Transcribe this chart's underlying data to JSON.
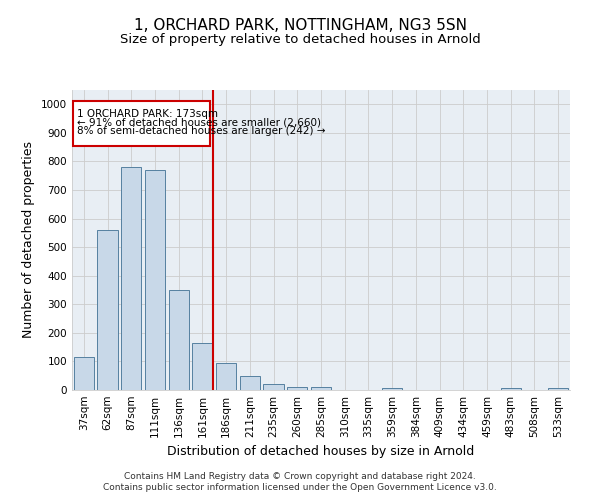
{
  "title": "1, ORCHARD PARK, NOTTINGHAM, NG3 5SN",
  "subtitle": "Size of property relative to detached houses in Arnold",
  "xlabel": "Distribution of detached houses by size in Arnold",
  "ylabel": "Number of detached properties",
  "categories": [
    "37sqm",
    "62sqm",
    "87sqm",
    "111sqm",
    "136sqm",
    "161sqm",
    "186sqm",
    "211sqm",
    "235sqm",
    "260sqm",
    "285sqm",
    "310sqm",
    "335sqm",
    "359sqm",
    "384sqm",
    "409sqm",
    "434sqm",
    "459sqm",
    "483sqm",
    "508sqm",
    "533sqm"
  ],
  "values": [
    115,
    560,
    780,
    770,
    350,
    165,
    95,
    50,
    20,
    12,
    10,
    0,
    0,
    8,
    0,
    0,
    0,
    0,
    8,
    0,
    8
  ],
  "bar_color": "#c8d8e8",
  "bar_edge_color": "#5580a0",
  "marker_label_line1": "1 ORCHARD PARK: 173sqm",
  "marker_label_line2": "← 91% of detached houses are smaller (2,660)",
  "marker_label_line3": "8% of semi-detached houses are larger (242) →",
  "annotation_border_color": "#cc0000",
  "vline_color": "#cc0000",
  "ylim": [
    0,
    1050
  ],
  "yticks": [
    0,
    100,
    200,
    300,
    400,
    500,
    600,
    700,
    800,
    900,
    1000
  ],
  "grid_color": "#cccccc",
  "bg_color": "#e8eef4",
  "footer_line1": "Contains HM Land Registry data © Crown copyright and database right 2024.",
  "footer_line2": "Contains public sector information licensed under the Open Government Licence v3.0.",
  "title_fontsize": 11,
  "subtitle_fontsize": 9.5,
  "axis_label_fontsize": 9,
  "tick_fontsize": 7.5,
  "annotation_fontsize": 7.5
}
